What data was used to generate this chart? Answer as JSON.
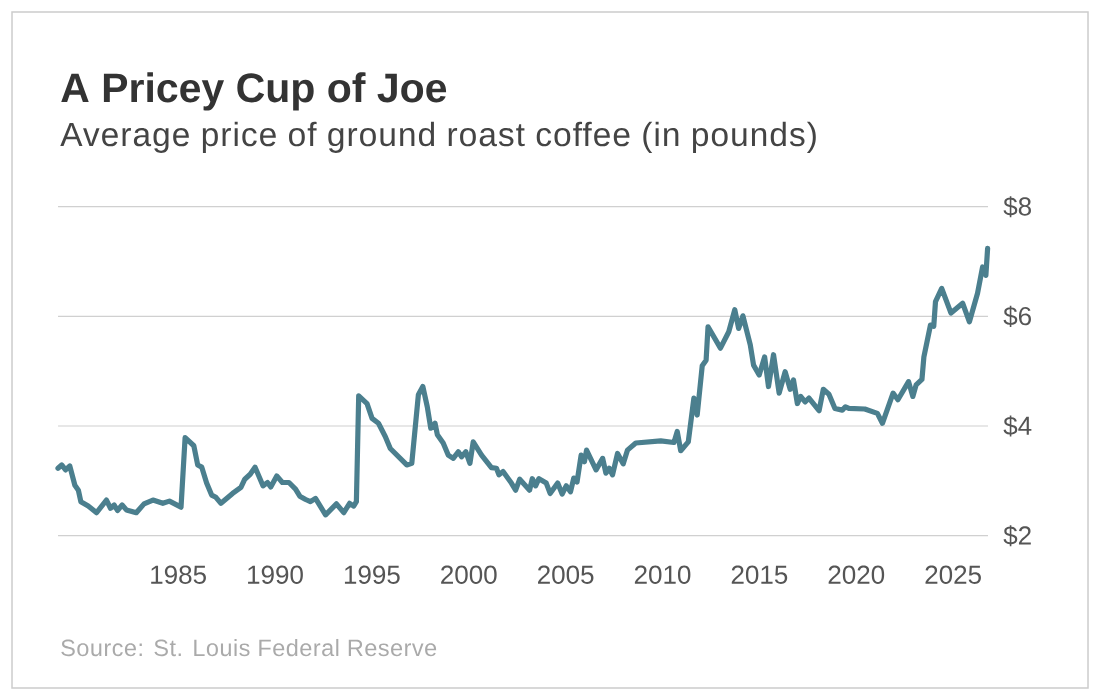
{
  "chart_data": {
    "type": "line",
    "title": "A Pricey Cup of Joe",
    "subtitle": "Average price of ground roast coffee (in pounds)",
    "annotations": [
      "Source: St. Louis Federal Reserve"
    ],
    "x": [
      1978.8,
      1978.99,
      1979.19,
      1979.41,
      1979.67,
      1979.85,
      1979.98,
      1980.36,
      1980.79,
      1981.3,
      1981.51,
      1981.7,
      1981.87,
      1982.11,
      1982.33,
      1982.84,
      1983.24,
      1983.7,
      1984.21,
      1984.55,
      1985.15,
      1985.36,
      1985.81,
      1986.01,
      1986.22,
      1986.47,
      1986.73,
      1986.95,
      1987.21,
      1987.81,
      1988.24,
      1988.44,
      1988.72,
      1988.97,
      1989.38,
      1989.61,
      1989.78,
      1990.09,
      1990.38,
      1990.72,
      1991.06,
      1991.28,
      1991.58,
      1991.83,
      1992.09,
      1992.61,
      1993.17,
      1993.55,
      1993.85,
      1994.06,
      1994.2,
      1994.32,
      1994.75,
      1995.01,
      1995.34,
      1995.69,
      1995.95,
      1996.8,
      1997.06,
      1997.4,
      1997.63,
      1997.86,
      1998.04,
      1998.26,
      1998.38,
      1998.68,
      1998.94,
      1999.2,
      1999.46,
      1999.63,
      1999.85,
      2000.06,
      2000.23,
      2000.66,
      2001.17,
      2001.43,
      2001.56,
      2001.77,
      2002.2,
      2002.42,
      2002.63,
      2003.14,
      2003.28,
      2003.45,
      2003.62,
      2004.0,
      2004.2,
      2004.59,
      2004.82,
      2005.03,
      2005.25,
      2005.42,
      2005.59,
      2005.8,
      2005.97,
      2006.08,
      2006.57,
      2006.91,
      2007.08,
      2007.25,
      2007.42,
      2007.68,
      2007.97,
      2008.19,
      2008.62,
      2009.91,
      2010.59,
      2010.76,
      2010.94,
      2011.33,
      2011.62,
      2011.79,
      2012.05,
      2012.25,
      2012.35,
      2012.99,
      2013.42,
      2013.73,
      2013.93,
      2014.15,
      2014.53,
      2014.7,
      2014.99,
      2015.27,
      2015.47,
      2015.73,
      2016.02,
      2016.33,
      2016.59,
      2016.76,
      2016.96,
      2017.13,
      2017.36,
      2017.56,
      2018.08,
      2018.3,
      2018.59,
      2018.9,
      2019.28,
      2019.44,
      2019.62,
      2020.44,
      2021.09,
      2021.35,
      2021.9,
      2022.15,
      2022.7,
      2022.92,
      2023.09,
      2023.39,
      2023.49,
      2023.83,
      2024.0,
      2024.09,
      2024.41,
      2024.89,
      2025.49,
      2025.84,
      2026.26,
      2026.52,
      2026.69,
      2026.78
    ],
    "values": [
      3.23,
      3.29,
      3.2,
      3.27,
      2.92,
      2.83,
      2.62,
      2.54,
      2.42,
      2.65,
      2.5,
      2.56,
      2.46,
      2.56,
      2.47,
      2.42,
      2.58,
      2.65,
      2.59,
      2.63,
      2.52,
      3.79,
      3.64,
      3.29,
      3.25,
      2.96,
      2.74,
      2.7,
      2.59,
      2.77,
      2.88,
      3.03,
      3.12,
      3.25,
      2.91,
      2.97,
      2.89,
      3.09,
      2.97,
      2.97,
      2.85,
      2.72,
      2.66,
      2.62,
      2.68,
      2.38,
      2.58,
      2.42,
      2.59,
      2.54,
      2.62,
      4.55,
      4.41,
      4.14,
      4.05,
      3.81,
      3.59,
      3.29,
      3.32,
      4.57,
      4.72,
      4.35,
      3.96,
      4.05,
      3.84,
      3.69,
      3.47,
      3.41,
      3.53,
      3.44,
      3.53,
      3.32,
      3.71,
      3.47,
      3.24,
      3.23,
      3.11,
      3.17,
      2.96,
      2.83,
      3.03,
      2.83,
      3.04,
      2.91,
      3.04,
      2.96,
      2.77,
      2.96,
      2.76,
      2.91,
      2.8,
      3.05,
      2.98,
      3.47,
      3.35,
      3.56,
      3.2,
      3.41,
      3.14,
      3.23,
      3.11,
      3.5,
      3.31,
      3.56,
      3.69,
      3.73,
      3.7,
      3.9,
      3.55,
      3.71,
      4.51,
      4.2,
      5.1,
      5.2,
      5.81,
      5.42,
      5.72,
      6.12,
      5.78,
      6.01,
      5.48,
      5.11,
      4.93,
      5.26,
      4.72,
      5.3,
      4.6,
      4.99,
      4.67,
      4.84,
      4.41,
      4.54,
      4.44,
      4.51,
      4.28,
      4.67,
      4.58,
      4.32,
      4.29,
      4.35,
      4.32,
      4.31,
      4.23,
      4.05,
      4.6,
      4.48,
      4.81,
      4.54,
      4.75,
      4.85,
      5.26,
      5.84,
      5.82,
      6.27,
      6.51,
      6.06,
      6.24,
      5.9,
      6.42,
      6.9,
      6.75,
      7.24
    ],
    "color": "#4b7f8e",
    "line_style": "solid",
    "grid": "y",
    "xlim": [
      1978.8,
      2026.8
    ],
    "xticks": [
      1985,
      1990,
      1995,
      2000,
      2005,
      2010,
      2015,
      2020,
      2025
    ],
    "ylim": [
      2,
      8
    ],
    "yticks": [
      {
        "value": 2,
        "label": "$2"
      },
      {
        "value": 4,
        "label": "$4"
      },
      {
        "value": 6,
        "label": "$6"
      },
      {
        "value": 8,
        "label": "$8"
      }
    ]
  }
}
